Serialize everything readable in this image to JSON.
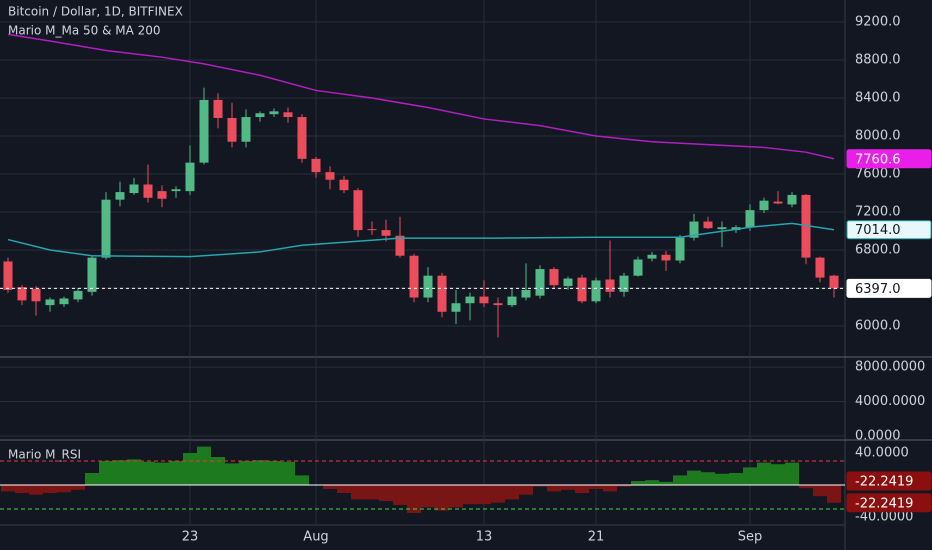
{
  "chart_data": [
    {
      "type": "candlestick",
      "title": "Bitcoin / Dollar, 1D, BITFINEX",
      "subtitle": "Mario M_Ma 50 & MA 200",
      "categories": [
        null,
        null,
        null,
        null,
        null,
        null,
        null,
        null,
        null,
        null,
        null,
        null,
        null,
        "23",
        null,
        null,
        null,
        null,
        null,
        null,
        null,
        null,
        "Aug",
        null,
        null,
        null,
        null,
        null,
        null,
        null,
        null,
        null,
        null,
        null,
        "13",
        null,
        null,
        null,
        null,
        null,
        null,
        null,
        "21",
        null,
        null,
        null,
        null,
        null,
        null,
        null,
        null,
        null,
        null,
        "Sep",
        null,
        null,
        null,
        null,
        null,
        null
      ],
      "open": [
        6680,
        6410,
        6390,
        6220,
        6230,
        6280,
        6360,
        6720,
        7330,
        7400,
        7490,
        7420,
        7420,
        7420,
        7720,
        8380,
        8190,
        7940,
        8200,
        8230,
        8250,
        8200,
        7760,
        7620,
        7540,
        7430,
        7020,
        7010,
        6950,
        6740,
        6300,
        6530,
        6150,
        6240,
        6310,
        6240,
        6220,
        6300,
        6320,
        6600,
        6420,
        6510,
        6260,
        6490,
        6360,
        6530,
        6710,
        6750,
        6690,
        6930,
        7100,
        7020,
        7010,
        7040,
        7220,
        7310,
        7280,
        7380,
        6720,
        6530
      ],
      "high": [
        6720,
        6430,
        6420,
        6300,
        6310,
        6400,
        6740,
        7410,
        7520,
        7560,
        7700,
        7480,
        7470,
        7900,
        8510,
        8450,
        8350,
        8280,
        8260,
        8290,
        8300,
        8230,
        7780,
        7680,
        7580,
        7450,
        7100,
        7120,
        7150,
        6760,
        6620,
        6560,
        6380,
        6350,
        6480,
        6300,
        6400,
        6660,
        6640,
        6620,
        6520,
        6540,
        6510,
        6900,
        6560,
        6730,
        6780,
        6790,
        6960,
        7180,
        7150,
        7100,
        7060,
        7280,
        7350,
        7420,
        7410,
        7390,
        6730,
        6540
      ],
      "low": [
        6350,
        6220,
        6110,
        6150,
        6200,
        6250,
        6320,
        6700,
        7260,
        7380,
        7300,
        7250,
        7350,
        7380,
        7700,
        8080,
        7880,
        7880,
        8150,
        8200,
        8140,
        7720,
        7560,
        7440,
        7400,
        6940,
        6960,
        6890,
        6720,
        6250,
        6250,
        6090,
        6020,
        6060,
        6200,
        5880,
        6200,
        6270,
        6290,
        6400,
        6380,
        6240,
        6240,
        6300,
        6310,
        6520,
        6680,
        6580,
        6660,
        6900,
        7020,
        6830,
        6980,
        7000,
        7190,
        7280,
        7250,
        6650,
        6460,
        6300
      ],
      "close": [
        6380,
        6270,
        6260,
        6280,
        6290,
        6370,
        6720,
        7330,
        7410,
        7490,
        7350,
        7340,
        7440,
        7720,
        8380,
        8190,
        7940,
        8200,
        8240,
        8260,
        8200,
        7760,
        7620,
        7540,
        7430,
        7010,
        7010,
        6950,
        6740,
        6300,
        6530,
        6150,
        6240,
        6310,
        6240,
        6220,
        6310,
        6380,
        6600,
        6430,
        6500,
        6260,
        6480,
        6360,
        6530,
        6700,
        6750,
        6690,
        6930,
        7100,
        7030,
        7040,
        7040,
        7220,
        7320,
        7290,
        7380,
        6720,
        6510,
        6397
      ],
      "last_label": "6397.0",
      "up_color": "#53b987",
      "down_color": "#eb4d5c",
      "lines": [
        {
          "color": "#b21fbf",
          "x": [
            0,
            3,
            7,
            11,
            14,
            18,
            22,
            26,
            30,
            34,
            38,
            42,
            46,
            50,
            54,
            57,
            59
          ],
          "values": [
            9070,
            9000,
            8900,
            8830,
            8760,
            8640,
            8480,
            8400,
            8300,
            8180,
            8110,
            8000,
            7940,
            7910,
            7880,
            7830,
            7760.6
          ],
          "last_label": "7760.6"
        },
        {
          "color": "#26a6b0",
          "x": [
            0,
            3,
            6,
            13,
            18,
            21,
            28,
            35,
            42,
            48,
            53,
            56,
            59
          ],
          "values": [
            6910,
            6800,
            6740,
            6730,
            6780,
            6850,
            6925,
            6925,
            6935,
            6935,
            7040,
            7080,
            7014
          ],
          "last_label": "7014.0"
        }
      ],
      "ylim": [
        5674,
        9432
      ],
      "yticks": [
        {
          "value": 6000,
          "label": "6000.0"
        },
        {
          "value": 6400,
          "label": "6400.0"
        },
        {
          "value": 6800,
          "label": "6800.0"
        },
        {
          "value": 7200,
          "label": "7200.0"
        },
        {
          "value": 7600,
          "label": "7600.0"
        },
        {
          "value": 8000,
          "label": "8000.0"
        },
        {
          "value": 8400,
          "label": "8400.0"
        },
        {
          "value": 8800,
          "label": "8800.0"
        },
        {
          "value": 9200,
          "label": "9200.0"
        }
      ],
      "grid": true
    },
    {
      "type": "volume",
      "ylim": [
        -470,
        9180
      ],
      "yticks": [
        {
          "value": 0,
          "label": "0.0000"
        },
        {
          "value": 4000,
          "label": "4000.0000"
        },
        {
          "value": 8000,
          "label": "8000.0000"
        }
      ]
    },
    {
      "type": "bar",
      "title": "Mario M_RSI",
      "values": [
        -8,
        -10,
        -12,
        -10,
        -9,
        -6,
        15,
        30,
        31,
        32,
        29,
        28,
        30,
        40,
        48,
        35,
        27,
        30,
        31,
        30,
        29,
        12,
        0,
        -5,
        -10,
        -18,
        -18,
        -20,
        -25,
        -35,
        -28,
        -32,
        -28,
        -24,
        -24,
        -22,
        -18,
        -12,
        -2,
        -8,
        -6,
        -10,
        -5,
        -8,
        -2,
        5,
        6,
        4,
        12,
        18,
        16,
        14,
        15,
        22,
        28,
        26,
        28,
        -4,
        -14,
        -22.2419
      ],
      "last_label": "-22.2419",
      "up_color": "#1e7a1e",
      "down_color": "#7a1515",
      "levels": [
        {
          "value": 30,
          "color": "#e53935"
        },
        {
          "value": -30,
          "color": "#3ddc3d"
        }
      ],
      "ylim": [
        -50,
        52.5
      ],
      "yticks": [
        {
          "value": 40,
          "label": "40.0000"
        },
        {
          "value": -40,
          "label": "-40.0000"
        }
      ]
    }
  ]
}
